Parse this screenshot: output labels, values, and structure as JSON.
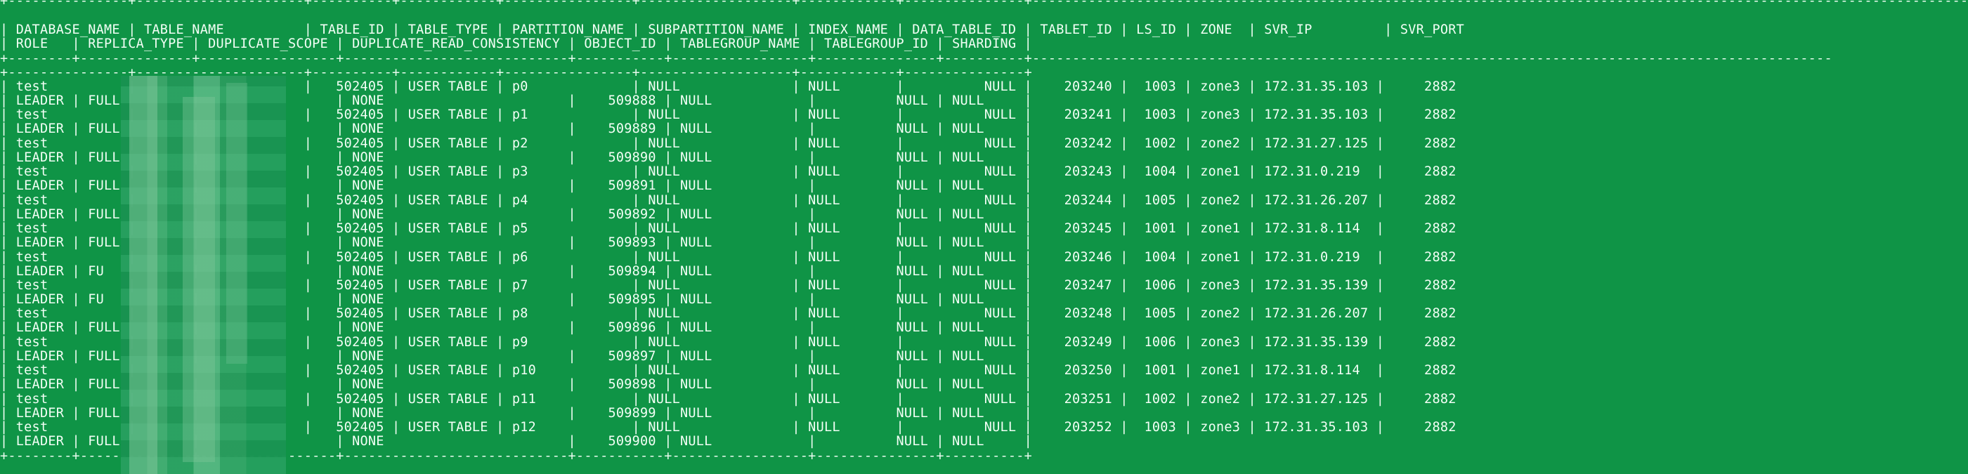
{
  "header": {
    "line1": "| DATABASE_NAME | TABLE_NAME          | TABLE_ID | TABLE_TYPE | PARTITION_NAME | SUBPARTITION_NAME | INDEX_NAME | DATA_TABLE_ID | TABLET_ID | LS_ID | ZONE  | SVR_IP         | SVR_PORT",
    "line2": "| ROLE   | REPLICA_TYPE | DUPLICATE_SCOPE | DUPLICATE_READ_CONSISTENCY | OBJECT_ID | TABLEGROUP_NAME | TABLEGROUP_ID | SHARDING |"
  },
  "borders": {
    "top": "+---------------+---------------------+----------+------------+----------------+-------------------+------------+---------------+---------------------------------------------------------------------------------------------------------------------",
    "mid": "+--------+--------------+-----------------+----------------------------+-----------+-----------------+---------------+----------+----------------------------------------------------------------------------------------------------",
    "sep": "+---------------+---------------------+----------+------------+----------------+-------------------+------------+---------------+",
    "bottom": "+--------+--------------+-----------------+----------------------------+-----------+-----------------+---------------+----------+"
  },
  "rows": [
    {
      "top": "| test          |                     |   502405 | USER TABLE | p0             | NULL              | NULL       |          NULL |    203240 |  1003 | zone3 | 172.31.35.103 |     2882",
      "bot": "| LEADER | FULL         |                 | NONE                       |    509888 | NULL            |          NULL | NULL     |"
    },
    {
      "top": "| test          |                     |   502405 | USER TABLE | p1             | NULL              | NULL       |          NULL |    203241 |  1003 | zone3 | 172.31.35.103 |     2882",
      "bot": "| LEADER | FULL         |                 | NONE                       |    509889 | NULL            |          NULL | NULL     |"
    },
    {
      "top": "| test          |                     |   502405 | USER TABLE | p2             | NULL              | NULL       |          NULL |    203242 |  1002 | zone2 | 172.31.27.125 |     2882",
      "bot": "| LEADER | FULL         |                 | NONE                       |    509890 | NULL            |          NULL | NULL     |"
    },
    {
      "top": "| test          |                     |   502405 | USER TABLE | p3             | NULL              | NULL       |          NULL |    203243 |  1004 | zone1 | 172.31.0.219  |     2882",
      "bot": "| LEADER | FULL         |                 | NONE                       |    509891 | NULL            |          NULL | NULL     |"
    },
    {
      "top": "| test          |                     |   502405 | USER TABLE | p4             | NULL              | NULL       |          NULL |    203244 |  1005 | zone2 | 172.31.26.207 |     2882",
      "bot": "| LEADER | FULL         |                 | NONE                       |    509892 | NULL            |          NULL | NULL     |"
    },
    {
      "top": "| test          |                     |   502405 | USER TABLE | p5             | NULL              | NULL       |          NULL |    203245 |  1001 | zone1 | 172.31.8.114  |     2882",
      "bot": "| LEADER | FULL         |                 | NONE                       |    509893 | NULL            |          NULL | NULL     |"
    },
    {
      "top": "| test          |                     |   502405 | USER TABLE | p6             | NULL              | NULL       |          NULL |    203246 |  1004 | zone1 | 172.31.0.219  |     2882",
      "bot": "| LEADER | FU           |                 | NONE                       |    509894 | NULL            |          NULL | NULL     |"
    },
    {
      "top": "| test          |                     |   502405 | USER TABLE | p7             | NULL              | NULL       |          NULL |    203247 |  1006 | zone3 | 172.31.35.139 |     2882",
      "bot": "| LEADER | FU           |                 | NONE                       |    509895 | NULL            |          NULL | NULL     |"
    },
    {
      "top": "| test          |                     |   502405 | USER TABLE | p8             | NULL              | NULL       |          NULL |    203248 |  1005 | zone2 | 172.31.26.207 |     2882",
      "bot": "| LEADER | FULL         |                 | NONE                       |    509896 | NULL            |          NULL | NULL     |"
    },
    {
      "top": "| test          |                     |   502405 | USER TABLE | p9             | NULL              | NULL       |          NULL |    203249 |  1006 | zone3 | 172.31.35.139 |     2882",
      "bot": "| LEADER | FULL         |                 | NONE                       |    509897 | NULL            |          NULL | NULL     |"
    },
    {
      "top": "| test          |                     |   502405 | USER TABLE | p10            | NULL              | NULL       |          NULL |    203250 |  1001 | zone1 | 172.31.8.114  |     2882",
      "bot": "| LEADER | FULL         |                 | NONE                       |    509898 | NULL            |          NULL | NULL     |"
    },
    {
      "top": "| test          |                     |   502405 | USER TABLE | p11            | NULL              | NULL       |          NULL |    203251 |  1002 | zone2 | 172.31.27.125 |     2882",
      "bot": "| LEADER | FULL         |                 | NONE                       |    509899 | NULL            |          NULL | NULL     |"
    },
    {
      "top": "| test          |                     |   502405 | USER TABLE | p12            | NULL              | NULL       |          NULL |    203252 |  1003 | zone3 | 172.31.35.103 |     2882",
      "bot": "| LEADER | FULL         |                 | NONE                       |    509900 | NULL            |          NULL | NULL     |"
    }
  ],
  "colors": {
    "background": "#0f9446",
    "text": "#f2fff5"
  }
}
